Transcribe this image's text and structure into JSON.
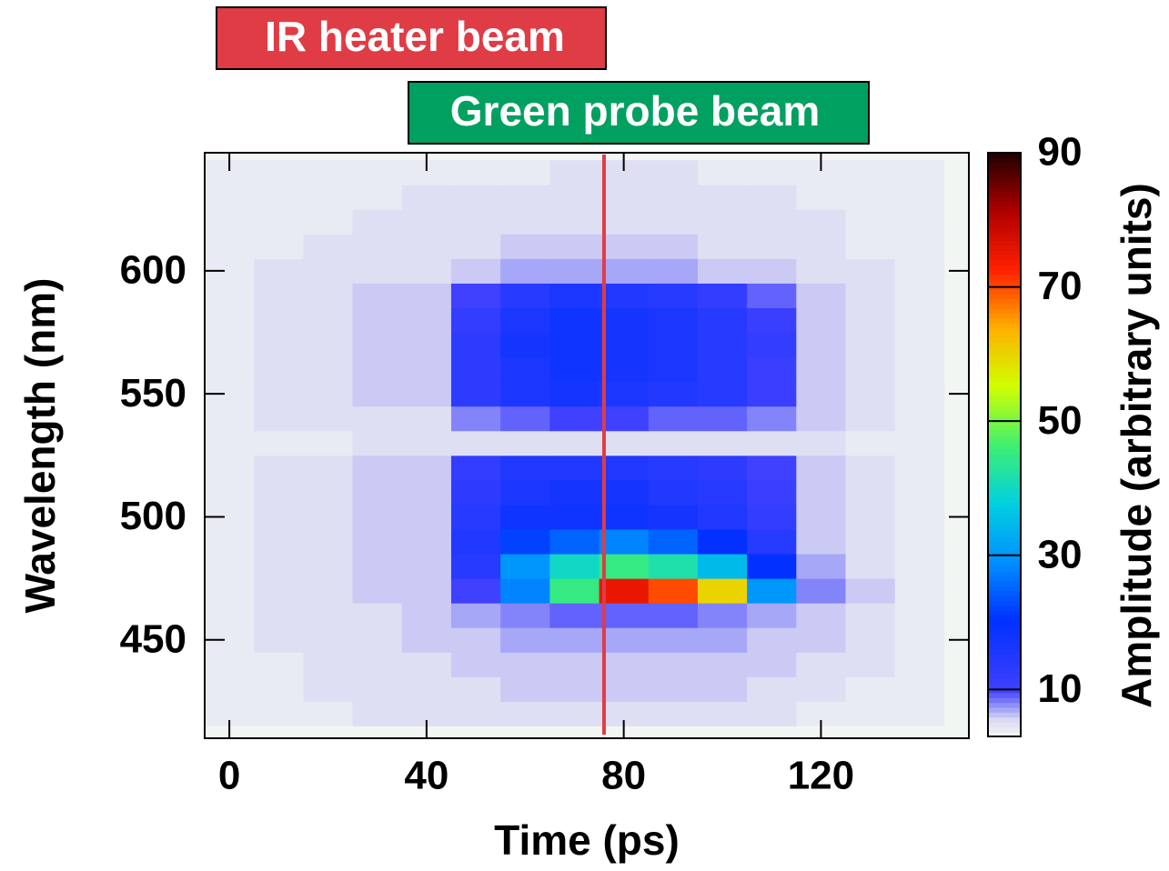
{
  "chart_data": {
    "type": "heatmap",
    "annotations": [
      "IR heater beam",
      "Green probe beam"
    ],
    "xlabel": "Time (ps)",
    "ylabel": "Wavelength (nm)",
    "colorbar_label": "Amplitude (arbitrary units)",
    "xlim": [
      -5,
      150
    ],
    "xticks": [
      0,
      40,
      80,
      120
    ],
    "ylim": [
      410,
      648
    ],
    "yticks": [
      450,
      500,
      550,
      600
    ],
    "clim": [
      3,
      90
    ],
    "cticks": [
      10,
      30,
      50,
      70,
      90
    ],
    "marker_x": 76,
    "marker_color": "#e03c45",
    "x": [
      0,
      10,
      20,
      30,
      40,
      50,
      60,
      70,
      80,
      90,
      100,
      110,
      120,
      130,
      140
    ],
    "y": [
      420,
      430,
      440,
      450,
      460,
      470,
      480,
      490,
      500,
      510,
      520,
      530,
      540,
      550,
      560,
      570,
      580,
      590,
      600,
      610,
      620,
      630,
      640
    ],
    "z": [
      [
        4,
        4,
        4,
        5,
        5,
        5,
        5,
        5,
        5,
        5,
        5,
        5,
        4,
        4,
        4
      ],
      [
        4,
        4,
        5,
        5,
        5,
        5,
        6,
        6,
        6,
        6,
        6,
        5,
        5,
        4,
        4
      ],
      [
        4,
        4,
        5,
        5,
        5,
        6,
        6,
        6,
        6,
        6,
        6,
        6,
        5,
        5,
        4
      ],
      [
        4,
        5,
        5,
        5,
        6,
        6,
        7,
        7,
        7,
        7,
        7,
        6,
        6,
        5,
        4
      ],
      [
        4,
        5,
        5,
        5,
        6,
        7,
        8,
        9,
        9,
        9,
        8,
        7,
        6,
        5,
        4
      ],
      [
        4,
        5,
        5,
        6,
        6,
        10,
        28,
        45,
        75,
        70,
        60,
        30,
        8,
        6,
        4
      ],
      [
        4,
        5,
        5,
        6,
        6,
        14,
        30,
        40,
        45,
        42,
        35,
        20,
        7,
        5,
        4
      ],
      [
        4,
        5,
        5,
        6,
        6,
        15,
        22,
        25,
        28,
        25,
        20,
        14,
        6,
        5,
        4
      ],
      [
        4,
        5,
        5,
        6,
        6,
        14,
        18,
        18,
        18,
        17,
        15,
        12,
        6,
        5,
        4
      ],
      [
        4,
        5,
        5,
        6,
        6,
        13,
        16,
        17,
        17,
        15,
        14,
        11,
        6,
        5,
        4
      ],
      [
        4,
        5,
        5,
        6,
        6,
        12,
        15,
        15,
        15,
        14,
        13,
        10,
        6,
        5,
        4
      ],
      [
        4,
        4,
        4,
        5,
        5,
        5,
        5,
        5,
        5,
        5,
        5,
        5,
        5,
        4,
        4
      ],
      [
        4,
        5,
        5,
        5,
        5,
        8,
        9,
        10,
        10,
        9,
        9,
        8,
        6,
        5,
        4
      ],
      [
        4,
        5,
        5,
        6,
        6,
        13,
        16,
        17,
        16,
        15,
        14,
        11,
        6,
        5,
        4
      ],
      [
        4,
        5,
        5,
        6,
        6,
        13,
        16,
        18,
        17,
        16,
        14,
        11,
        6,
        5,
        4
      ],
      [
        4,
        5,
        5,
        6,
        6,
        13,
        17,
        18,
        17,
        16,
        14,
        12,
        6,
        5,
        4
      ],
      [
        4,
        5,
        5,
        6,
        6,
        12,
        16,
        18,
        17,
        16,
        14,
        11,
        6,
        5,
        4
      ],
      [
        4,
        5,
        5,
        6,
        6,
        10,
        14,
        16,
        15,
        14,
        12,
        9,
        6,
        5,
        4
      ],
      [
        4,
        5,
        5,
        5,
        5,
        6,
        7,
        7,
        7,
        7,
        6,
        6,
        5,
        5,
        4
      ],
      [
        4,
        4,
        5,
        5,
        5,
        5,
        6,
        6,
        6,
        6,
        5,
        5,
        5,
        4,
        4
      ],
      [
        4,
        4,
        4,
        5,
        5,
        5,
        5,
        5,
        5,
        5,
        5,
        5,
        5,
        4,
        4
      ],
      [
        4,
        4,
        4,
        4,
        5,
        5,
        5,
        5,
        5,
        5,
        5,
        5,
        4,
        4,
        4
      ],
      [
        4,
        4,
        4,
        4,
        4,
        4,
        4,
        5,
        5,
        5,
        4,
        4,
        4,
        4,
        4
      ]
    ]
  }
}
